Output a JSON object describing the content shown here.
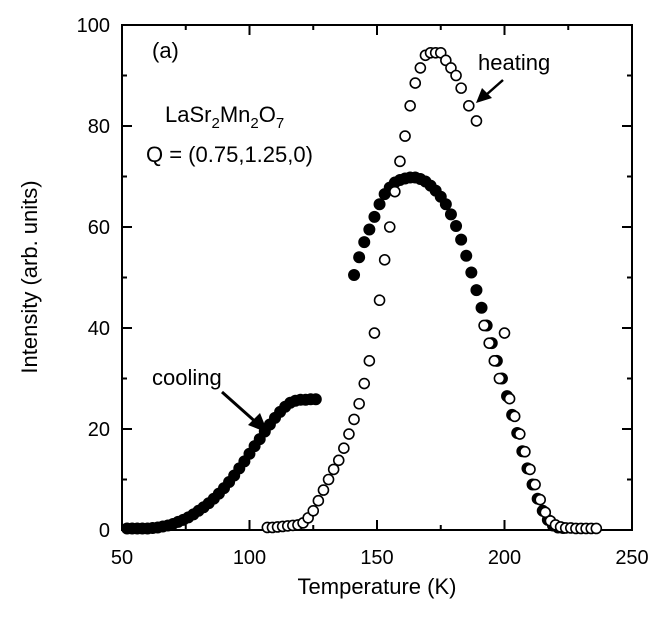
{
  "chart_data": {
    "type": "scatter",
    "xlabel": "Temperature (K)",
    "ylabel": "Intensity (arb. units)",
    "xlim": [
      50,
      250
    ],
    "ylim": [
      0,
      100
    ],
    "xticks": [
      50,
      100,
      150,
      200,
      250
    ],
    "yticks": [
      0,
      20,
      40,
      60,
      80,
      100
    ],
    "grid": false,
    "annotations": {
      "panel": "(a)",
      "formula": {
        "parts": [
          "LaSr",
          "2",
          "Mn",
          "2",
          "O",
          "7"
        ]
      },
      "q_vector": "Q = (0.75,1.25,0)",
      "cooling": "cooling",
      "heating": "heating"
    },
    "series": [
      {
        "name": "cooling",
        "marker": "filled-circle",
        "points": [
          [
            52,
            0.3
          ],
          [
            54,
            0.3
          ],
          [
            56,
            0.3
          ],
          [
            58,
            0.3
          ],
          [
            60,
            0.3
          ],
          [
            62,
            0.4
          ],
          [
            64,
            0.5
          ],
          [
            66,
            0.7
          ],
          [
            68,
            0.9
          ],
          [
            70,
            1.2
          ],
          [
            72,
            1.6
          ],
          [
            74,
            2.0
          ],
          [
            76,
            2.5
          ],
          [
            78,
            3.1
          ],
          [
            80,
            3.8
          ],
          [
            82,
            4.5
          ],
          [
            84,
            5.3
          ],
          [
            86,
            6.2
          ],
          [
            88,
            7.2
          ],
          [
            90,
            8.3
          ],
          [
            92,
            9.5
          ],
          [
            94,
            10.8
          ],
          [
            96,
            12.2
          ],
          [
            98,
            13.6
          ],
          [
            100,
            15.1
          ],
          [
            102,
            16.6
          ],
          [
            104,
            18.0
          ],
          [
            106,
            19.5
          ],
          [
            108,
            20.9
          ],
          [
            110,
            22.2
          ],
          [
            112,
            23.4
          ],
          [
            114,
            24.4
          ],
          [
            116,
            25.2
          ],
          [
            118,
            25.6
          ],
          [
            120,
            25.8
          ],
          [
            122,
            25.8
          ],
          [
            124,
            25.9
          ],
          [
            126,
            25.9
          ],
          [
            141,
            50.5
          ],
          [
            143,
            54.0
          ],
          [
            145,
            57.0
          ],
          [
            147,
            59.5
          ],
          [
            149,
            62.0
          ],
          [
            151,
            64.5
          ],
          [
            153,
            66.5
          ],
          [
            155,
            67.8
          ],
          [
            157,
            68.8
          ],
          [
            159,
            69.3
          ],
          [
            161,
            69.6
          ],
          [
            163,
            69.8
          ],
          [
            165,
            69.8
          ],
          [
            167,
            69.5
          ],
          [
            169,
            69.0
          ],
          [
            171,
            68.2
          ],
          [
            173,
            67.2
          ],
          [
            175,
            66.0
          ],
          [
            177,
            64.5
          ],
          [
            179,
            62.5
          ],
          [
            181,
            60.2
          ],
          [
            183,
            57.5
          ],
          [
            185,
            54.3
          ],
          [
            187,
            51.0
          ],
          [
            189,
            47.5
          ],
          [
            191,
            44.0
          ],
          [
            193,
            40.5
          ],
          [
            195,
            37.0
          ],
          [
            197,
            33.5
          ],
          [
            199,
            30.0
          ],
          [
            201,
            26.5
          ],
          [
            203,
            22.8
          ],
          [
            205,
            19.2
          ],
          [
            207,
            15.6
          ],
          [
            209,
            12.2
          ],
          [
            211,
            9.0
          ],
          [
            213,
            6.2
          ],
          [
            215,
            3.8
          ],
          [
            217,
            2.0
          ],
          [
            219,
            0.9
          ],
          [
            221,
            0.5
          ],
          [
            223,
            0.4
          ]
        ]
      },
      {
        "name": "heating",
        "marker": "open-circle",
        "points": [
          [
            107,
            0.5
          ],
          [
            109,
            0.5
          ],
          [
            111,
            0.6
          ],
          [
            113,
            0.7
          ],
          [
            115,
            0.8
          ],
          [
            117,
            0.9
          ],
          [
            119,
            1.0
          ],
          [
            121,
            1.4
          ],
          [
            123,
            2.4
          ],
          [
            125,
            3.8
          ],
          [
            127,
            5.8
          ],
          [
            129,
            7.9
          ],
          [
            131,
            10.0
          ],
          [
            133,
            12.0
          ],
          [
            135,
            13.8
          ],
          [
            137,
            16.2
          ],
          [
            139,
            19.0
          ],
          [
            141,
            21.9
          ],
          [
            143,
            25.0
          ],
          [
            145,
            29.0
          ],
          [
            147,
            33.5
          ],
          [
            149,
            39.0
          ],
          [
            151,
            45.5
          ],
          [
            153,
            53.5
          ],
          [
            155,
            60.0
          ],
          [
            157,
            67.0
          ],
          [
            159,
            73.0
          ],
          [
            161,
            78.0
          ],
          [
            163,
            84.0
          ],
          [
            165,
            88.5
          ],
          [
            167,
            91.5
          ],
          [
            169,
            94.0
          ],
          [
            171,
            94.5
          ],
          [
            173,
            94.5
          ],
          [
            175,
            94.5
          ],
          [
            177,
            93.0
          ],
          [
            179,
            91.5
          ],
          [
            181,
            90.0
          ],
          [
            183,
            87.5
          ],
          [
            186,
            84.0
          ],
          [
            189,
            81.0
          ],
          [
            192,
            40.5
          ],
          [
            194,
            37.0
          ],
          [
            196,
            33.5
          ],
          [
            198,
            30.0
          ],
          [
            200,
            39.0
          ],
          [
            202,
            26.0
          ],
          [
            204,
            22.5
          ],
          [
            206,
            19.0
          ],
          [
            208,
            15.5
          ],
          [
            210,
            12.0
          ],
          [
            212,
            9.0
          ],
          [
            214,
            6.0
          ],
          [
            216,
            3.5
          ],
          [
            218,
            1.8
          ],
          [
            220,
            1.0
          ],
          [
            222,
            0.6
          ],
          [
            224,
            0.4
          ],
          [
            226,
            0.4
          ],
          [
            228,
            0.3
          ],
          [
            230,
            0.3
          ],
          [
            232,
            0.3
          ],
          [
            234,
            0.3
          ],
          [
            236,
            0.3
          ]
        ]
      }
    ]
  }
}
